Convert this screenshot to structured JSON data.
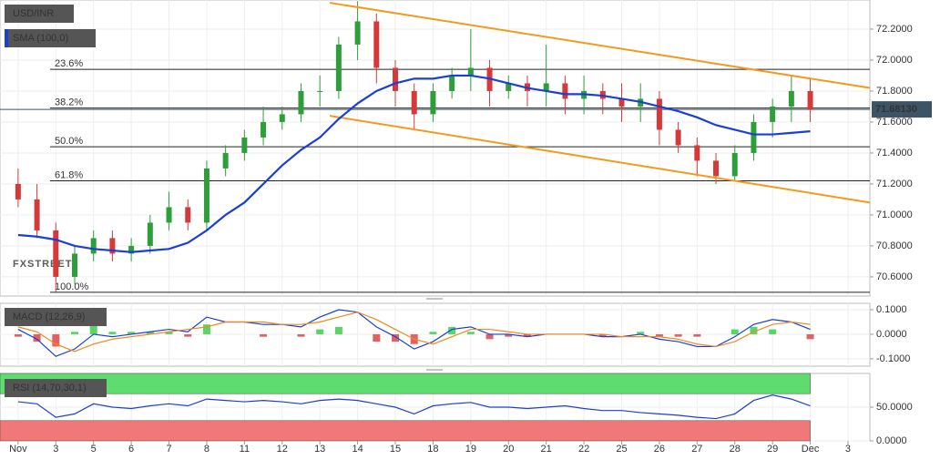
{
  "chart_data": [
    {
      "type": "candlestick",
      "title": "USD/INR",
      "watermark": "FXSTREET",
      "x": [
        0,
        0.5,
        1,
        1.5,
        2,
        2.5,
        3,
        3.5,
        4,
        4.5,
        5,
        5.5,
        6,
        6.5,
        7,
        7.5,
        8,
        8.5,
        9,
        9.5,
        10,
        10.5,
        11,
        11.5,
        12,
        12.5,
        13,
        13.5,
        14,
        14.5,
        15,
        15.5,
        16,
        16.5,
        17,
        17.5,
        18,
        18.5,
        19,
        19.5,
        20,
        20.5,
        21
      ],
      "open": [
        71.2,
        71.1,
        70.9,
        70.6,
        70.75,
        70.85,
        70.75,
        70.8,
        70.95,
        71.05,
        70.95,
        71.3,
        71.4,
        71.5,
        71.6,
        71.65,
        71.8,
        71.8,
        72.1,
        72.25,
        71.95,
        71.8,
        71.65,
        71.8,
        71.9,
        71.95,
        71.8,
        71.85,
        71.8,
        71.85,
        71.75,
        71.8,
        71.75,
        71.7,
        71.75,
        71.55,
        71.45,
        71.35,
        71.25,
        71.4,
        71.6,
        71.7,
        71.8
      ],
      "high": [
        71.3,
        71.2,
        70.95,
        70.8,
        70.9,
        70.9,
        70.85,
        71.0,
        71.15,
        71.1,
        71.35,
        71.45,
        71.55,
        71.7,
        71.7,
        71.85,
        71.9,
        72.15,
        72.38,
        72.3,
        72.0,
        71.85,
        71.85,
        71.95,
        72.2,
        72.0,
        71.9,
        71.9,
        72.1,
        71.9,
        71.9,
        71.85,
        71.85,
        71.85,
        71.8,
        71.6,
        71.5,
        71.4,
        71.45,
        71.65,
        71.75,
        71.9,
        71.88
      ],
      "low": [
        71.05,
        70.85,
        70.5,
        70.55,
        70.7,
        70.7,
        70.7,
        70.75,
        70.9,
        70.9,
        70.9,
        71.25,
        71.35,
        71.45,
        71.55,
        71.6,
        71.7,
        71.75,
        72.0,
        71.85,
        71.7,
        71.55,
        71.6,
        71.75,
        71.8,
        71.7,
        71.75,
        71.7,
        71.7,
        71.65,
        71.65,
        71.65,
        71.6,
        71.6,
        71.45,
        71.4,
        71.25,
        71.2,
        71.22,
        71.35,
        71.5,
        71.6,
        71.6
      ],
      "close": [
        71.1,
        70.9,
        70.6,
        70.75,
        70.85,
        70.75,
        70.8,
        70.95,
        71.05,
        70.95,
        71.3,
        71.4,
        71.5,
        71.6,
        71.65,
        71.8,
        71.8,
        72.1,
        72.25,
        71.95,
        71.8,
        71.65,
        71.8,
        71.9,
        71.95,
        71.8,
        71.85,
        71.8,
        71.85,
        71.75,
        71.8,
        71.75,
        71.7,
        71.75,
        71.55,
        71.45,
        71.35,
        71.25,
        71.4,
        71.6,
        71.7,
        71.8,
        71.68
      ],
      "up_color": "#2e9e3a",
      "down_color": "#d43a3a",
      "sma": {
        "name": "SMA (100,0)",
        "color": "#1a3fd6",
        "values": [
          70.87,
          70.86,
          70.84,
          70.8,
          70.78,
          70.77,
          70.76,
          70.77,
          70.78,
          70.82,
          70.9,
          71.0,
          71.08,
          71.2,
          71.32,
          71.42,
          71.5,
          71.62,
          71.72,
          71.8,
          71.85,
          71.88,
          71.88,
          71.9,
          71.9,
          71.88,
          71.85,
          71.82,
          71.8,
          71.78,
          71.78,
          71.77,
          71.75,
          71.73,
          71.7,
          71.67,
          71.63,
          71.58,
          71.55,
          71.52,
          71.52,
          71.53,
          71.54
        ]
      },
      "trendlines": [
        {
          "color": "#f39a1e",
          "x": [
            8.26,
            22.58
          ],
          "y": [
            72.37,
            71.82
          ]
        },
        {
          "color": "#f39a1e",
          "x": [
            8.26,
            22.58
          ],
          "y": [
            71.64,
            71.08
          ]
        }
      ],
      "levels": [
        {
          "label": "23.6%",
          "value": 71.94
        },
        {
          "label": "38.2%",
          "value": 71.69
        },
        {
          "label": "50.0%",
          "value": 71.44
        },
        {
          "label": "61.8%",
          "value": 71.22
        },
        {
          "label": "100.0%",
          "value": 70.5
        }
      ],
      "last_price": {
        "value": 71.6813,
        "label": "71.68130"
      },
      "xlim": [
        -0.48,
        22.58
      ],
      "xticks": [
        {
          "value": 0,
          "label": "Nov"
        },
        {
          "value": 1,
          "label": "3"
        },
        {
          "value": 2,
          "label": "5"
        },
        {
          "value": 3,
          "label": "6"
        },
        {
          "value": 4,
          "label": "7"
        },
        {
          "value": 5,
          "label": "8"
        },
        {
          "value": 6,
          "label": "11"
        },
        {
          "value": 7,
          "label": "12"
        },
        {
          "value": 8,
          "label": "13"
        },
        {
          "value": 9,
          "label": "14"
        },
        {
          "value": 10,
          "label": "15"
        },
        {
          "value": 11,
          "label": "18"
        },
        {
          "value": 12,
          "label": "19"
        },
        {
          "value": 13,
          "label": "20"
        },
        {
          "value": 14,
          "label": "21"
        },
        {
          "value": 15,
          "label": "22"
        },
        {
          "value": 16,
          "label": "25"
        },
        {
          "value": 17,
          "label": "26"
        },
        {
          "value": 18,
          "label": "27"
        },
        {
          "value": 19,
          "label": "28"
        },
        {
          "value": 20,
          "label": "29"
        },
        {
          "value": 21,
          "label": "Dec"
        },
        {
          "value": 22,
          "label": "3"
        }
      ],
      "ylim": [
        70.476,
        72.388
      ],
      "yticks": [
        {
          "value": 70.6,
          "label": "70.6000"
        },
        {
          "value": 70.8,
          "label": "70.8000"
        },
        {
          "value": 71.0,
          "label": "71.0000"
        },
        {
          "value": 71.2,
          "label": "71.2000"
        },
        {
          "value": 71.4,
          "label": "71.4000"
        },
        {
          "value": 71.6,
          "label": "71.6000"
        },
        {
          "value": 71.8,
          "label": "71.8000"
        },
        {
          "value": 72.0,
          "label": "72.0000"
        },
        {
          "value": 72.2,
          "label": "72.2000"
        }
      ],
      "grid": true
    },
    {
      "type": "macd",
      "title": "MACD (12,26,9)",
      "series": [
        {
          "kind": "line",
          "color": "#1a3fd6",
          "values": [
            0.02,
            -0.02,
            -0.09,
            -0.06,
            0.0,
            -0.01,
            0.0,
            0.01,
            0.02,
            0.01,
            0.07,
            0.05,
            0.05,
            0.04,
            0.04,
            0.03,
            0.07,
            0.1,
            0.09,
            0.03,
            -0.01,
            -0.06,
            -0.03,
            0.02,
            0.03,
            0.0,
            0.0,
            -0.01,
            0.0,
            0.0,
            0.0,
            -0.01,
            -0.01,
            0.0,
            -0.02,
            -0.03,
            -0.05,
            -0.05,
            -0.01,
            0.04,
            0.06,
            0.05,
            0.02
          ]
        },
        {
          "kind": "line",
          "color": "#f08a1c",
          "values": [
            0.03,
            0.01,
            -0.04,
            -0.07,
            -0.04,
            -0.02,
            -0.01,
            0.0,
            0.01,
            0.02,
            0.03,
            0.05,
            0.05,
            0.05,
            0.04,
            0.04,
            0.05,
            0.07,
            0.09,
            0.06,
            0.02,
            -0.02,
            -0.04,
            -0.01,
            0.02,
            0.02,
            0.01,
            0.0,
            0.0,
            0.0,
            0.0,
            0.0,
            -0.01,
            -0.01,
            -0.01,
            -0.02,
            -0.04,
            -0.05,
            -0.03,
            0.01,
            0.04,
            0.05,
            0.04
          ]
        },
        {
          "kind": "bar",
          "up_color": "#3ccf4e",
          "down_color": "#e04545",
          "values": [
            -0.01,
            -0.03,
            -0.05,
            0.01,
            0.04,
            0.01,
            0.01,
            0.01,
            0.01,
            -0.01,
            0.04,
            0.0,
            0.0,
            -0.01,
            0.0,
            -0.01,
            0.02,
            0.03,
            0.0,
            -0.03,
            -0.03,
            -0.04,
            0.01,
            0.03,
            0.01,
            -0.02,
            -0.01,
            -0.01,
            0,
            0,
            0,
            -0.01,
            0,
            0.01,
            -0.01,
            -0.01,
            -0.01,
            0,
            0.02,
            0.03,
            0.02,
            0,
            -0.02
          ]
        }
      ],
      "ylim": [
        -0.13,
        0.126
      ],
      "yticks": [
        {
          "value": 0.1,
          "label": "0.1000"
        },
        {
          "value": 0,
          "label": "0.0000"
        },
        {
          "value": -0.1,
          "label": "-0.1000"
        }
      ]
    },
    {
      "type": "rsi",
      "title": "RSI (14,70,30,1)",
      "color": "#1a3fd6",
      "values": [
        58,
        55,
        35,
        40,
        55,
        50,
        48,
        52,
        55,
        52,
        62,
        60,
        58,
        60,
        58,
        55,
        60,
        62,
        60,
        55,
        50,
        40,
        52,
        55,
        57,
        50,
        50,
        48,
        50,
        52,
        48,
        45,
        45,
        42,
        40,
        38,
        35,
        33,
        40,
        60,
        68,
        62,
        52
      ],
      "bands": [
        {
          "from": 70,
          "to": 100,
          "color": "#5fdc6f"
        },
        {
          "from": 0,
          "to": 30,
          "color": "#f07878"
        }
      ],
      "ylim": [
        0,
        100
      ],
      "yticks": [
        {
          "value": 50,
          "label": "50.0000"
        },
        {
          "value": 0,
          "label": "0.0000"
        }
      ]
    }
  ]
}
